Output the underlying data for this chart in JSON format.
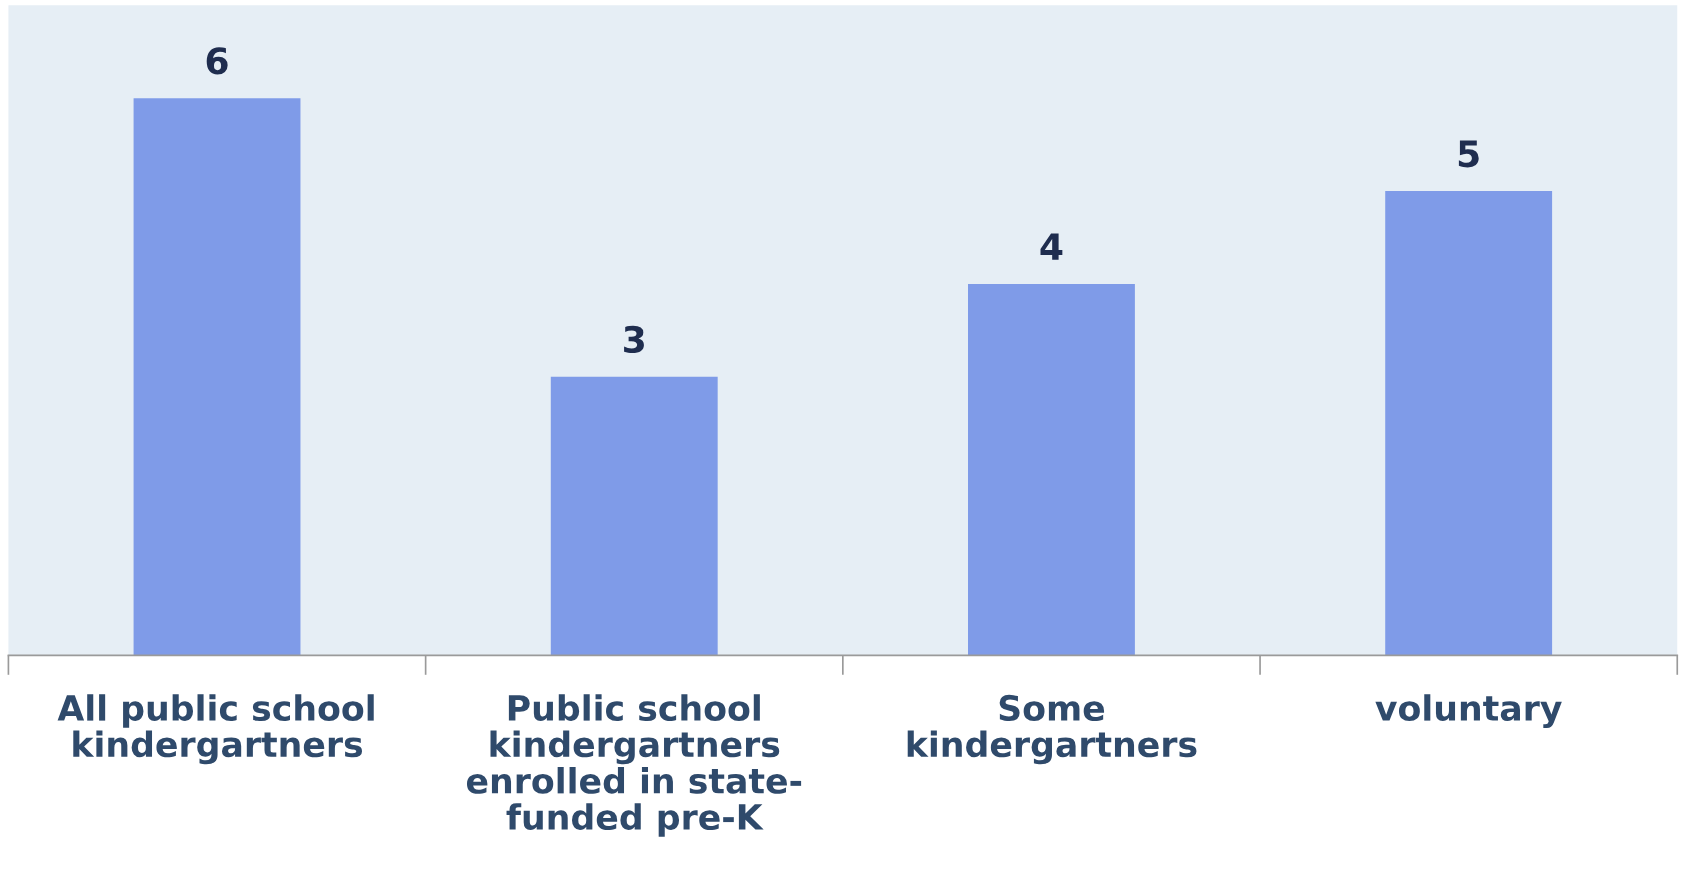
{
  "chart_data": {
    "type": "bar",
    "categories": [
      "All public school\nkindergartners",
      "Public school\nkindergartners\nenrolled in state-\nfunded pre-K",
      "Some\nkindergartners",
      "voluntary"
    ],
    "values": [
      6,
      3,
      4,
      5
    ],
    "color": "#7f9be8",
    "ylim": [
      0,
      7
    ],
    "data_labels": true,
    "grid": false,
    "legend": false,
    "tick_labels": "x"
  }
}
